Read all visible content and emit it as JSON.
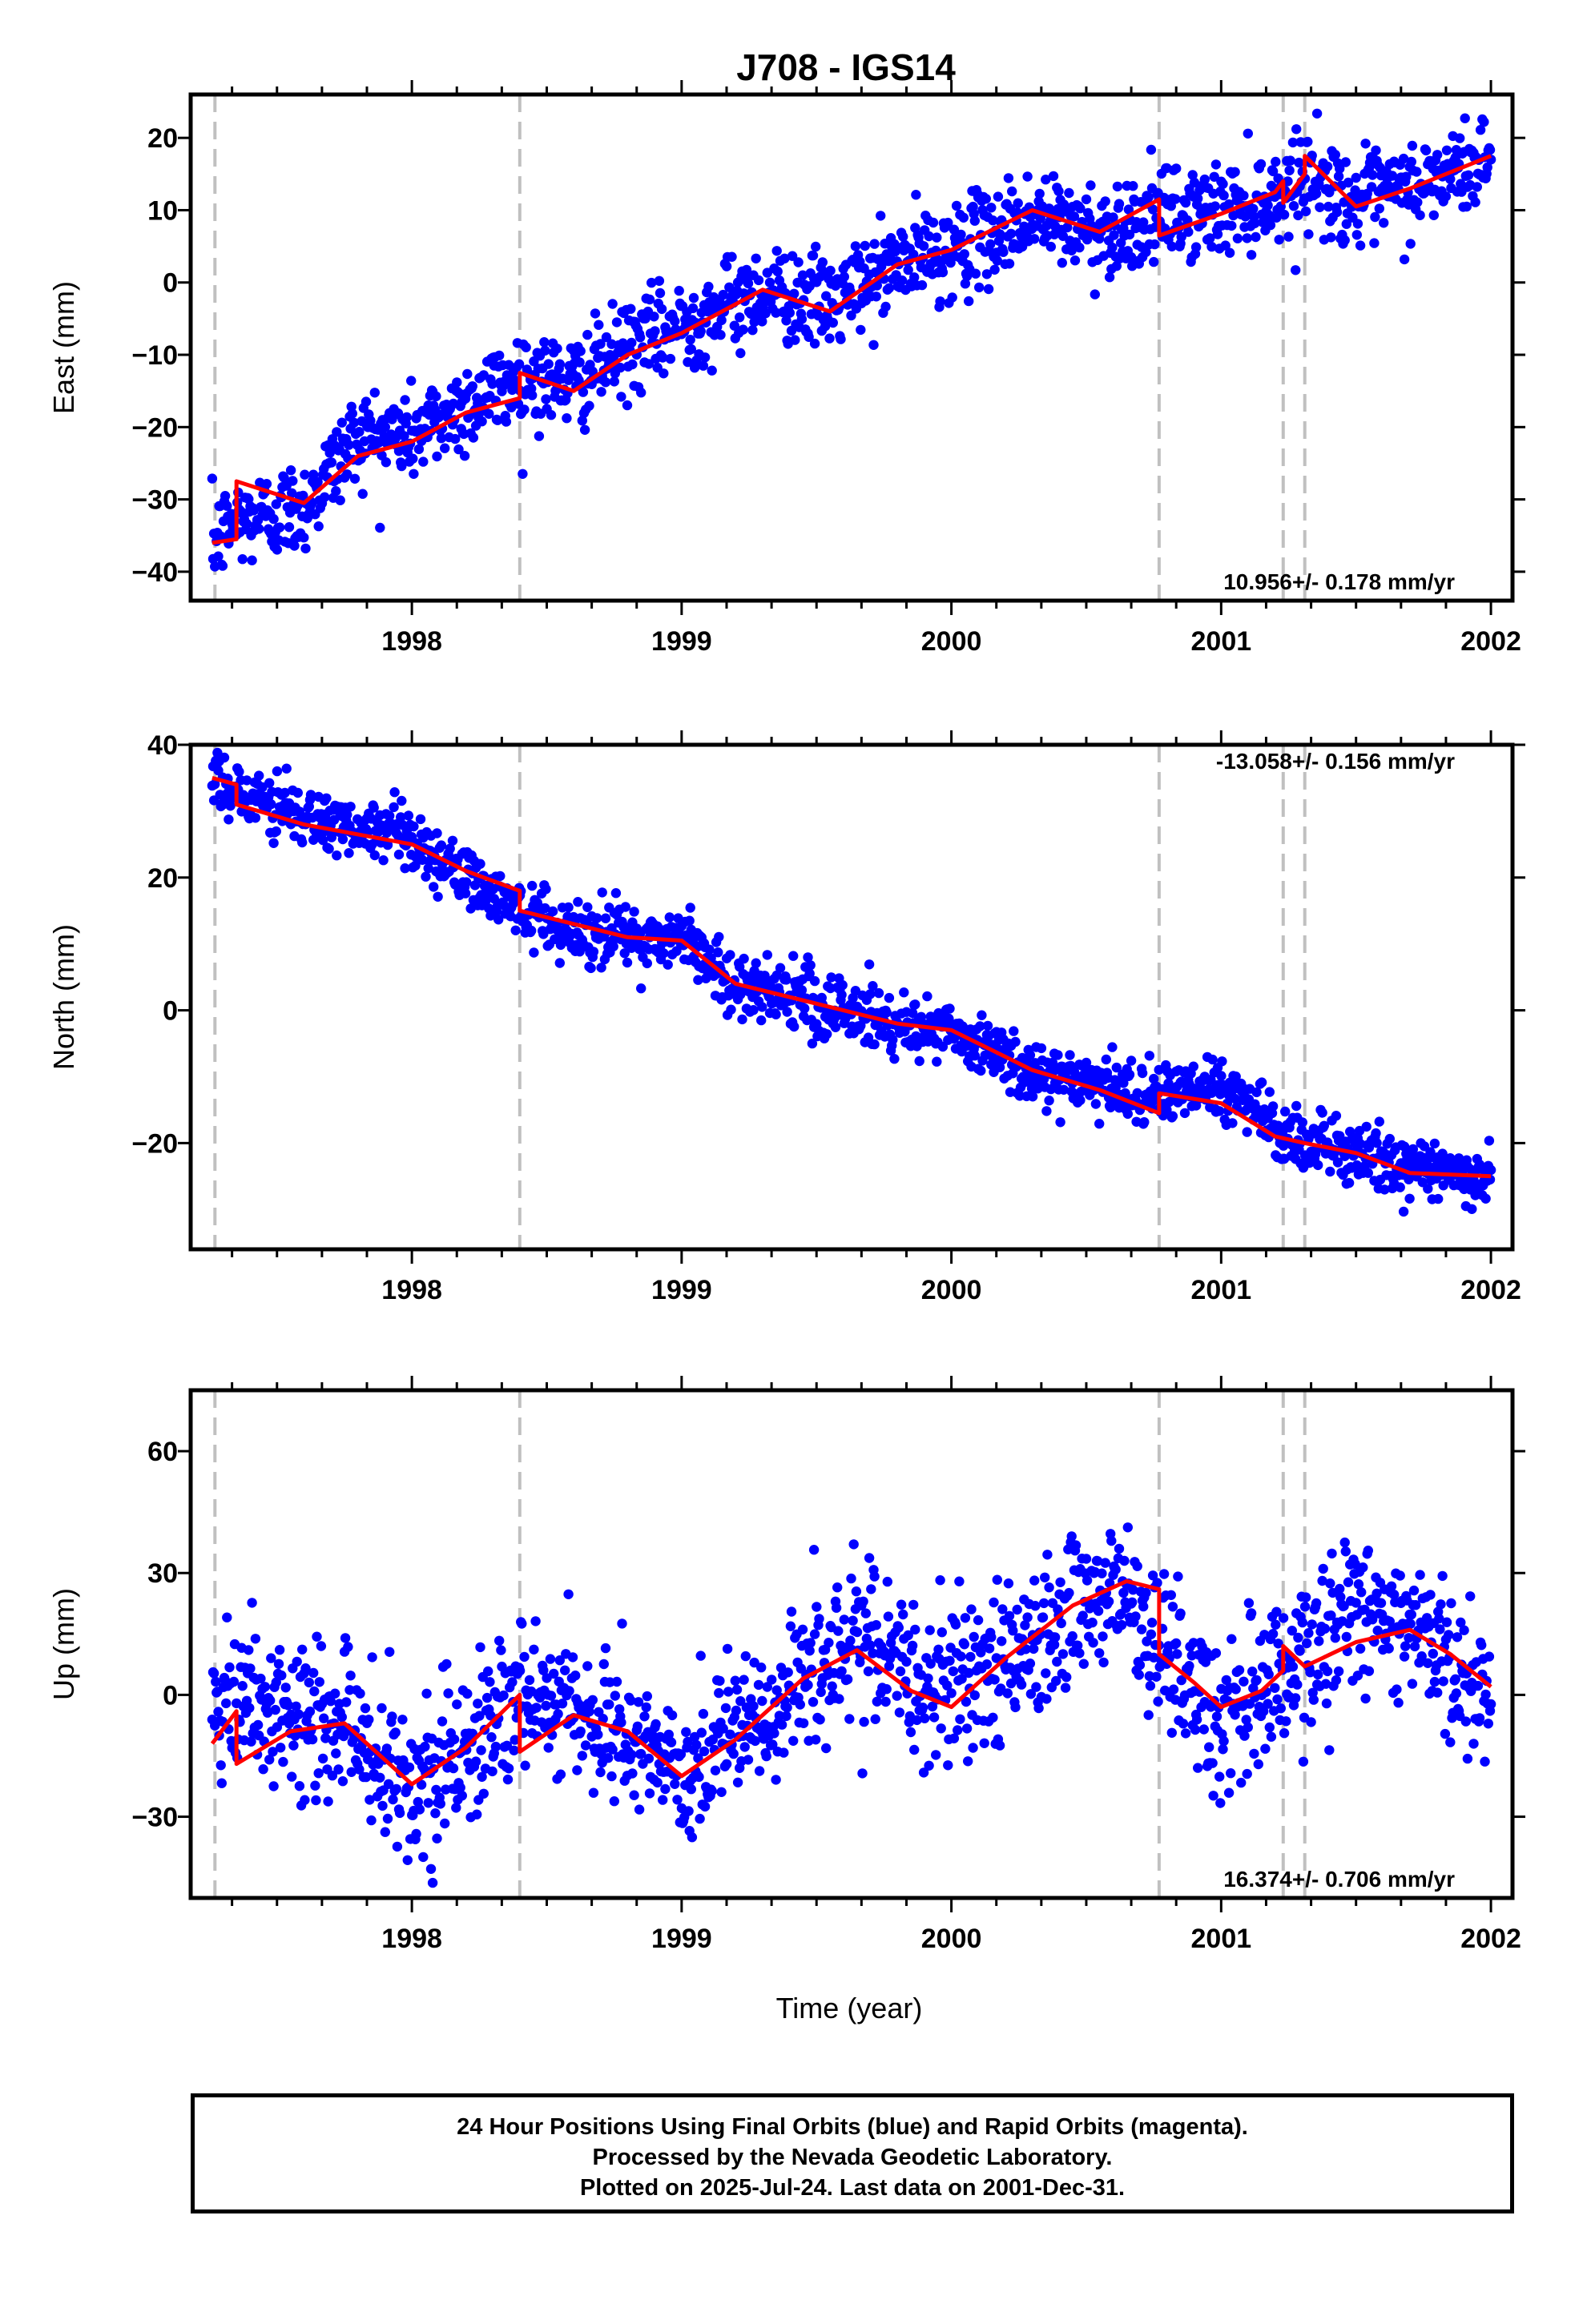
{
  "figure": {
    "title": "J708 - IGS14",
    "xlabel": "Time (year)",
    "notes": [
      "24 Hour Positions Using Final Orbits (blue) and Rapid Orbits (magenta).",
      "Processed by the Nevada Geodetic Laboratory.",
      "Plotted on 2025-Jul-24. Last data on 2001-Dec-31."
    ]
  },
  "colors": {
    "points": "#0000ff",
    "model": "#ff0000",
    "breaks": "#c0c0c0",
    "frame": "#000000"
  },
  "chart_data": [
    {
      "type": "scatter",
      "title": "East",
      "ylabel": "East (mm)",
      "rate_label": "10.956+/- 0.178 mm/yr",
      "xlim": [
        1997.18,
        2002.08
      ],
      "ylim": [
        -44,
        26
      ],
      "xticks": [
        "1998",
        "1999",
        "2000",
        "2001",
        "2002"
      ],
      "yticks": [
        "20",
        "10",
        "0",
        "−10",
        "−20",
        "−30",
        "−40"
      ],
      "ytick_values": [
        20,
        10,
        0,
        -10,
        -20,
        -30,
        -40
      ],
      "break_years": [
        1997.27,
        1998.4,
        2000.77,
        2001.23,
        2001.31
      ],
      "model_line": {
        "x": [
          1997.26,
          1997.35,
          1997.35,
          1997.6,
          1997.8,
          1998.0,
          1998.2,
          1998.4,
          1998.4,
          1998.6,
          1998.8,
          1999.0,
          1999.3,
          1999.55,
          1999.8,
          2000.0,
          2000.3,
          2000.55,
          2000.77,
          2000.77,
          2001.0,
          2001.2,
          2001.23,
          2001.23,
          2001.31,
          2001.31,
          2001.5,
          2001.7,
          2002.0
        ],
        "y": [
          -36,
          -35.5,
          -27.5,
          -30.5,
          -24,
          -22,
          -18,
          -16,
          -12.5,
          -15,
          -10,
          -7,
          -1,
          -4,
          2.5,
          4.5,
          10,
          7,
          11.5,
          6.5,
          9.5,
          12.5,
          14,
          11,
          15,
          17.5,
          10.5,
          13,
          17.5
        ]
      },
      "point_trend": {
        "x": [
          1997.26,
          1997.35,
          1997.6,
          1997.8,
          1998.0,
          1998.2,
          1998.4,
          1998.6,
          1998.8,
          1999.0,
          1999.3,
          1999.55,
          1999.8,
          2000.0,
          2000.3,
          2000.55,
          2000.77,
          2001.0,
          2001.2,
          2001.31,
          2001.5,
          2001.7,
          2002.0
        ],
        "y": [
          -36,
          -33,
          -31,
          -21,
          -21,
          -17,
          -13,
          -14,
          -9,
          -6,
          -1,
          -3,
          2.5,
          4.5,
          9,
          7,
          9,
          10,
          12,
          15,
          11,
          13,
          17
        ]
      },
      "point_scatter_mm": 3.2,
      "points_count": 1480
    },
    {
      "type": "scatter",
      "title": "North",
      "ylabel": "North (mm)",
      "rate_label": "-13.058+/- 0.156 mm/yr",
      "xlim": [
        1997.18,
        2002.08
      ],
      "ylim": [
        -36,
        40
      ],
      "xticks": [
        "1998",
        "1999",
        "2000",
        "2001",
        "2002"
      ],
      "yticks": [
        "40",
        "20",
        "0",
        "−20"
      ],
      "ytick_values": [
        40,
        20,
        0,
        -20
      ],
      "break_years": [
        1997.27,
        1998.4,
        2000.77,
        2001.23,
        2001.31
      ],
      "model_line": {
        "x": [
          1997.26,
          1997.35,
          1997.35,
          1997.6,
          1997.8,
          1998.0,
          1998.2,
          1998.4,
          1998.4,
          1998.6,
          1998.8,
          1999.0,
          1999.2,
          1999.5,
          1999.8,
          2000.0,
          2000.3,
          2000.55,
          2000.77,
          2000.77,
          2001.0,
          2001.2,
          2001.31,
          2001.5,
          2001.7,
          2002.0
        ],
        "y": [
          35,
          34,
          31,
          28,
          26.5,
          25,
          21,
          18,
          15,
          13,
          11,
          10.5,
          4,
          1,
          -2,
          -3,
          -9,
          -12,
          -15.5,
          -12.5,
          -14,
          -19,
          -20,
          -21.5,
          -24.5,
          -25
        ]
      },
      "point_trend": {
        "x": [
          1997.26,
          1997.35,
          1997.6,
          1997.8,
          1998.0,
          1998.2,
          1998.4,
          1998.6,
          1998.8,
          1999.0,
          1999.2,
          1999.5,
          1999.8,
          2000.0,
          2000.3,
          2000.55,
          2000.77,
          2001.0,
          2001.2,
          2001.31,
          2001.5,
          2001.7,
          2002.0
        ],
        "y": [
          36,
          33,
          29,
          27,
          25,
          20,
          15,
          12,
          11,
          11,
          4,
          1,
          -2,
          -3,
          -9,
          -12,
          -13,
          -11,
          -18,
          -20,
          -22,
          -24,
          -25
        ]
      },
      "point_scatter_mm": 2.4,
      "points_count": 1480
    },
    {
      "type": "scatter",
      "title": "Up",
      "ylabel": "Up (mm)",
      "rate_label": "16.374+/- 0.706 mm/yr",
      "xlim": [
        1997.18,
        2002.08
      ],
      "ylim": [
        -50,
        75
      ],
      "xticks": [
        "1998",
        "1999",
        "2000",
        "2001",
        "2002"
      ],
      "yticks": [
        "60",
        "30",
        "0",
        "−30"
      ],
      "ytick_values": [
        60,
        30,
        0,
        -30
      ],
      "break_years": [
        1997.27,
        1998.4,
        2000.77,
        2001.23,
        2001.31
      ],
      "model_line": {
        "x": [
          1997.26,
          1997.35,
          1997.35,
          1997.55,
          1997.75,
          1998.0,
          1998.2,
          1998.4,
          1998.4,
          1998.6,
          1998.8,
          1999.0,
          1999.2,
          1999.45,
          1999.65,
          1999.85,
          2000.0,
          2000.2,
          2000.45,
          2000.65,
          2000.77,
          2000.77,
          2000.9,
          2001.0,
          2001.15,
          2001.23,
          2001.23,
          2001.31,
          2001.31,
          2001.5,
          2001.7,
          2001.85,
          2002.0
        ],
        "y": [
          -12,
          -4,
          -17,
          -9,
          -7,
          -22,
          -13,
          0,
          -14,
          -5,
          -9,
          -20,
          -11,
          4,
          11,
          1,
          -3,
          9,
          22,
          28,
          26,
          10,
          3,
          -3,
          1,
          6,
          12,
          7,
          7,
          13,
          16,
          10,
          2
        ]
      },
      "point_trend": {
        "x": [
          1997.26,
          1997.35,
          1997.55,
          1997.75,
          1998.0,
          1998.2,
          1998.4,
          1998.6,
          1998.8,
          1999.0,
          1999.2,
          1999.45,
          1999.65,
          1999.85,
          2000.0,
          2000.2,
          2000.45,
          2000.65,
          2000.77,
          2000.9,
          2001.0,
          2001.15,
          2001.31,
          2001.5,
          2001.7,
          2001.85,
          2002.0
        ],
        "y": [
          -6,
          -4,
          -6,
          -6,
          -22,
          -14,
          0,
          -6,
          -9,
          -20,
          -11,
          2,
          14,
          6,
          0,
          10,
          22,
          28,
          10,
          0,
          -6,
          0,
          8,
          22,
          14,
          8,
          0
        ]
      },
      "point_scatter_mm": 9.5,
      "points_count": 1480
    }
  ]
}
